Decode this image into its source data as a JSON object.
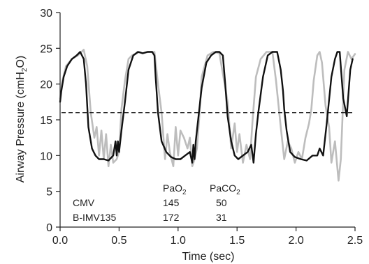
{
  "chart_data": {
    "type": "line",
    "title": "",
    "xlabel": "Time (sec)",
    "ylabel_parts": [
      "Airway Pressure (cmH",
      "2",
      "O)"
    ],
    "xlim": [
      0,
      2.5
    ],
    "ylim": [
      0,
      30
    ],
    "x_ticks": [
      0,
      0.5,
      1,
      1.5,
      2,
      2.5
    ],
    "x_tick_labels": [
      "0.0",
      "0.5",
      "1.0",
      "1.5",
      "2.0",
      "2.5"
    ],
    "y_ticks": [
      0,
      5,
      10,
      15,
      20,
      25,
      30
    ],
    "y_tick_labels": [
      "0",
      "5",
      "10",
      "15",
      "20",
      "25",
      "30"
    ],
    "grid": false,
    "colors": {
      "axis": "#222222",
      "black_series": "#111111",
      "gray_series": "#bdbdbd"
    },
    "series": [
      {
        "color": "#bdbdbd",
        "x": [
          0.0,
          0.02,
          0.05,
          0.1,
          0.15,
          0.2,
          0.23,
          0.26,
          0.29,
          0.31,
          0.33,
          0.35,
          0.37,
          0.39,
          0.41,
          0.43,
          0.45,
          0.48,
          0.5,
          0.52,
          0.55,
          0.58,
          0.61,
          0.64,
          0.67,
          0.7,
          0.75,
          0.8,
          0.83,
          0.86,
          0.89,
          0.91,
          0.93,
          0.96,
          0.98,
          1.0,
          1.02,
          1.05,
          1.08,
          1.1,
          1.12,
          1.14,
          1.16,
          1.18,
          1.2,
          1.25,
          1.3,
          1.35,
          1.39,
          1.42,
          1.45,
          1.48,
          1.5,
          1.52,
          1.55,
          1.58,
          1.61,
          1.63,
          1.66,
          1.7,
          1.75,
          1.8,
          1.83,
          1.87,
          1.9,
          1.93,
          1.96,
          1.99,
          2.02,
          2.05,
          2.08,
          2.11,
          2.13,
          2.15,
          2.18,
          2.2,
          2.22,
          2.25,
          2.28,
          2.3,
          2.33,
          2.36,
          2.38,
          2.41,
          2.44,
          2.47,
          2.5
        ],
        "y": [
          18.0,
          20.5,
          22.5,
          23.5,
          24.0,
          24.8,
          22.5,
          16.0,
          12.5,
          14.0,
          10.0,
          13.5,
          9.5,
          13.0,
          8.5,
          11.5,
          9.0,
          9.5,
          10.5,
          16.5,
          20.5,
          23.5,
          24.0,
          24.2,
          24.5,
          24.3,
          24.5,
          24.5,
          20.0,
          16.0,
          9.5,
          13.0,
          10.5,
          8.5,
          14.0,
          10.0,
          13.5,
          12.5,
          11.0,
          12.5,
          8.5,
          9.5,
          11.0,
          15.5,
          21.0,
          24.0,
          24.5,
          24.3,
          20.5,
          17.5,
          11.0,
          14.5,
          10.5,
          13.0,
          9.0,
          11.5,
          9.5,
          14.5,
          21.0,
          23.5,
          24.5,
          24.5,
          20.5,
          14.0,
          9.5,
          12.0,
          11.0,
          9.0,
          10.5,
          9.5,
          12.5,
          14.5,
          16.5,
          20.5,
          24.0,
          24.5,
          23.0,
          17.0,
          14.0,
          9.0,
          12.0,
          6.5,
          9.5,
          22.0,
          24.5,
          23.5,
          24.2
        ]
      },
      {
        "color": "#111111",
        "x": [
          0.0,
          0.01,
          0.03,
          0.06,
          0.1,
          0.14,
          0.17,
          0.2,
          0.22,
          0.24,
          0.27,
          0.3,
          0.33,
          0.37,
          0.41,
          0.45,
          0.47,
          0.48,
          0.49,
          0.5,
          0.52,
          0.55,
          0.58,
          0.62,
          0.66,
          0.7,
          0.74,
          0.78,
          0.8,
          0.81,
          0.83,
          0.86,
          0.9,
          0.94,
          0.98,
          1.02,
          1.06,
          1.1,
          1.12,
          1.13,
          1.14,
          1.15,
          1.17,
          1.2,
          1.24,
          1.28,
          1.32,
          1.35,
          1.38,
          1.4,
          1.42,
          1.45,
          1.48,
          1.51,
          1.55,
          1.59,
          1.62,
          1.64,
          1.66,
          1.68,
          1.72,
          1.76,
          1.8,
          1.84,
          1.87,
          1.89,
          1.9,
          1.92,
          1.95,
          1.99,
          2.04,
          2.09,
          2.14,
          2.18,
          2.2,
          2.23,
          2.26,
          2.3,
          2.33,
          2.35,
          2.37,
          2.4,
          2.43,
          2.46,
          2.48
        ],
        "y": [
          17.5,
          19.0,
          21.0,
          22.5,
          23.5,
          24.0,
          24.5,
          23.5,
          20.0,
          14.0,
          11.0,
          10.0,
          9.5,
          9.5,
          9.3,
          10.0,
          12.0,
          10.0,
          12.0,
          10.5,
          13.5,
          17.5,
          22.0,
          24.0,
          24.5,
          24.3,
          24.5,
          24.5,
          24.0,
          21.0,
          16.0,
          12.0,
          10.5,
          9.8,
          9.5,
          9.5,
          10.0,
          10.5,
          9.0,
          11.5,
          9.5,
          12.0,
          15.0,
          19.5,
          23.0,
          24.0,
          24.5,
          24.5,
          24.0,
          20.0,
          15.5,
          12.0,
          10.0,
          9.5,
          10.0,
          10.5,
          11.5,
          9.0,
          13.0,
          16.0,
          21.0,
          24.0,
          24.5,
          24.5,
          22.0,
          19.0,
          16.5,
          13.5,
          10.5,
          9.8,
          9.5,
          9.3,
          10.0,
          10.0,
          11.0,
          10.0,
          14.5,
          21.0,
          23.5,
          24.5,
          24.5,
          18.0,
          15.5,
          22.0,
          23.5
        ]
      }
    ],
    "reference_line": {
      "y": 16,
      "style": "dashed",
      "x_range": [
        0,
        2.5
      ]
    },
    "annotation": {
      "header": [
        {
          "text": "PaO",
          "sub": "2",
          "after": ""
        },
        {
          "text": "PaCO",
          "sub": "2",
          "after": ""
        }
      ],
      "rows": [
        {
          "label": "CMV",
          "pao2": "145",
          "paco2": "50"
        },
        {
          "label": "B-IMV135",
          "pao2": "172",
          "paco2": "31"
        }
      ]
    }
  }
}
